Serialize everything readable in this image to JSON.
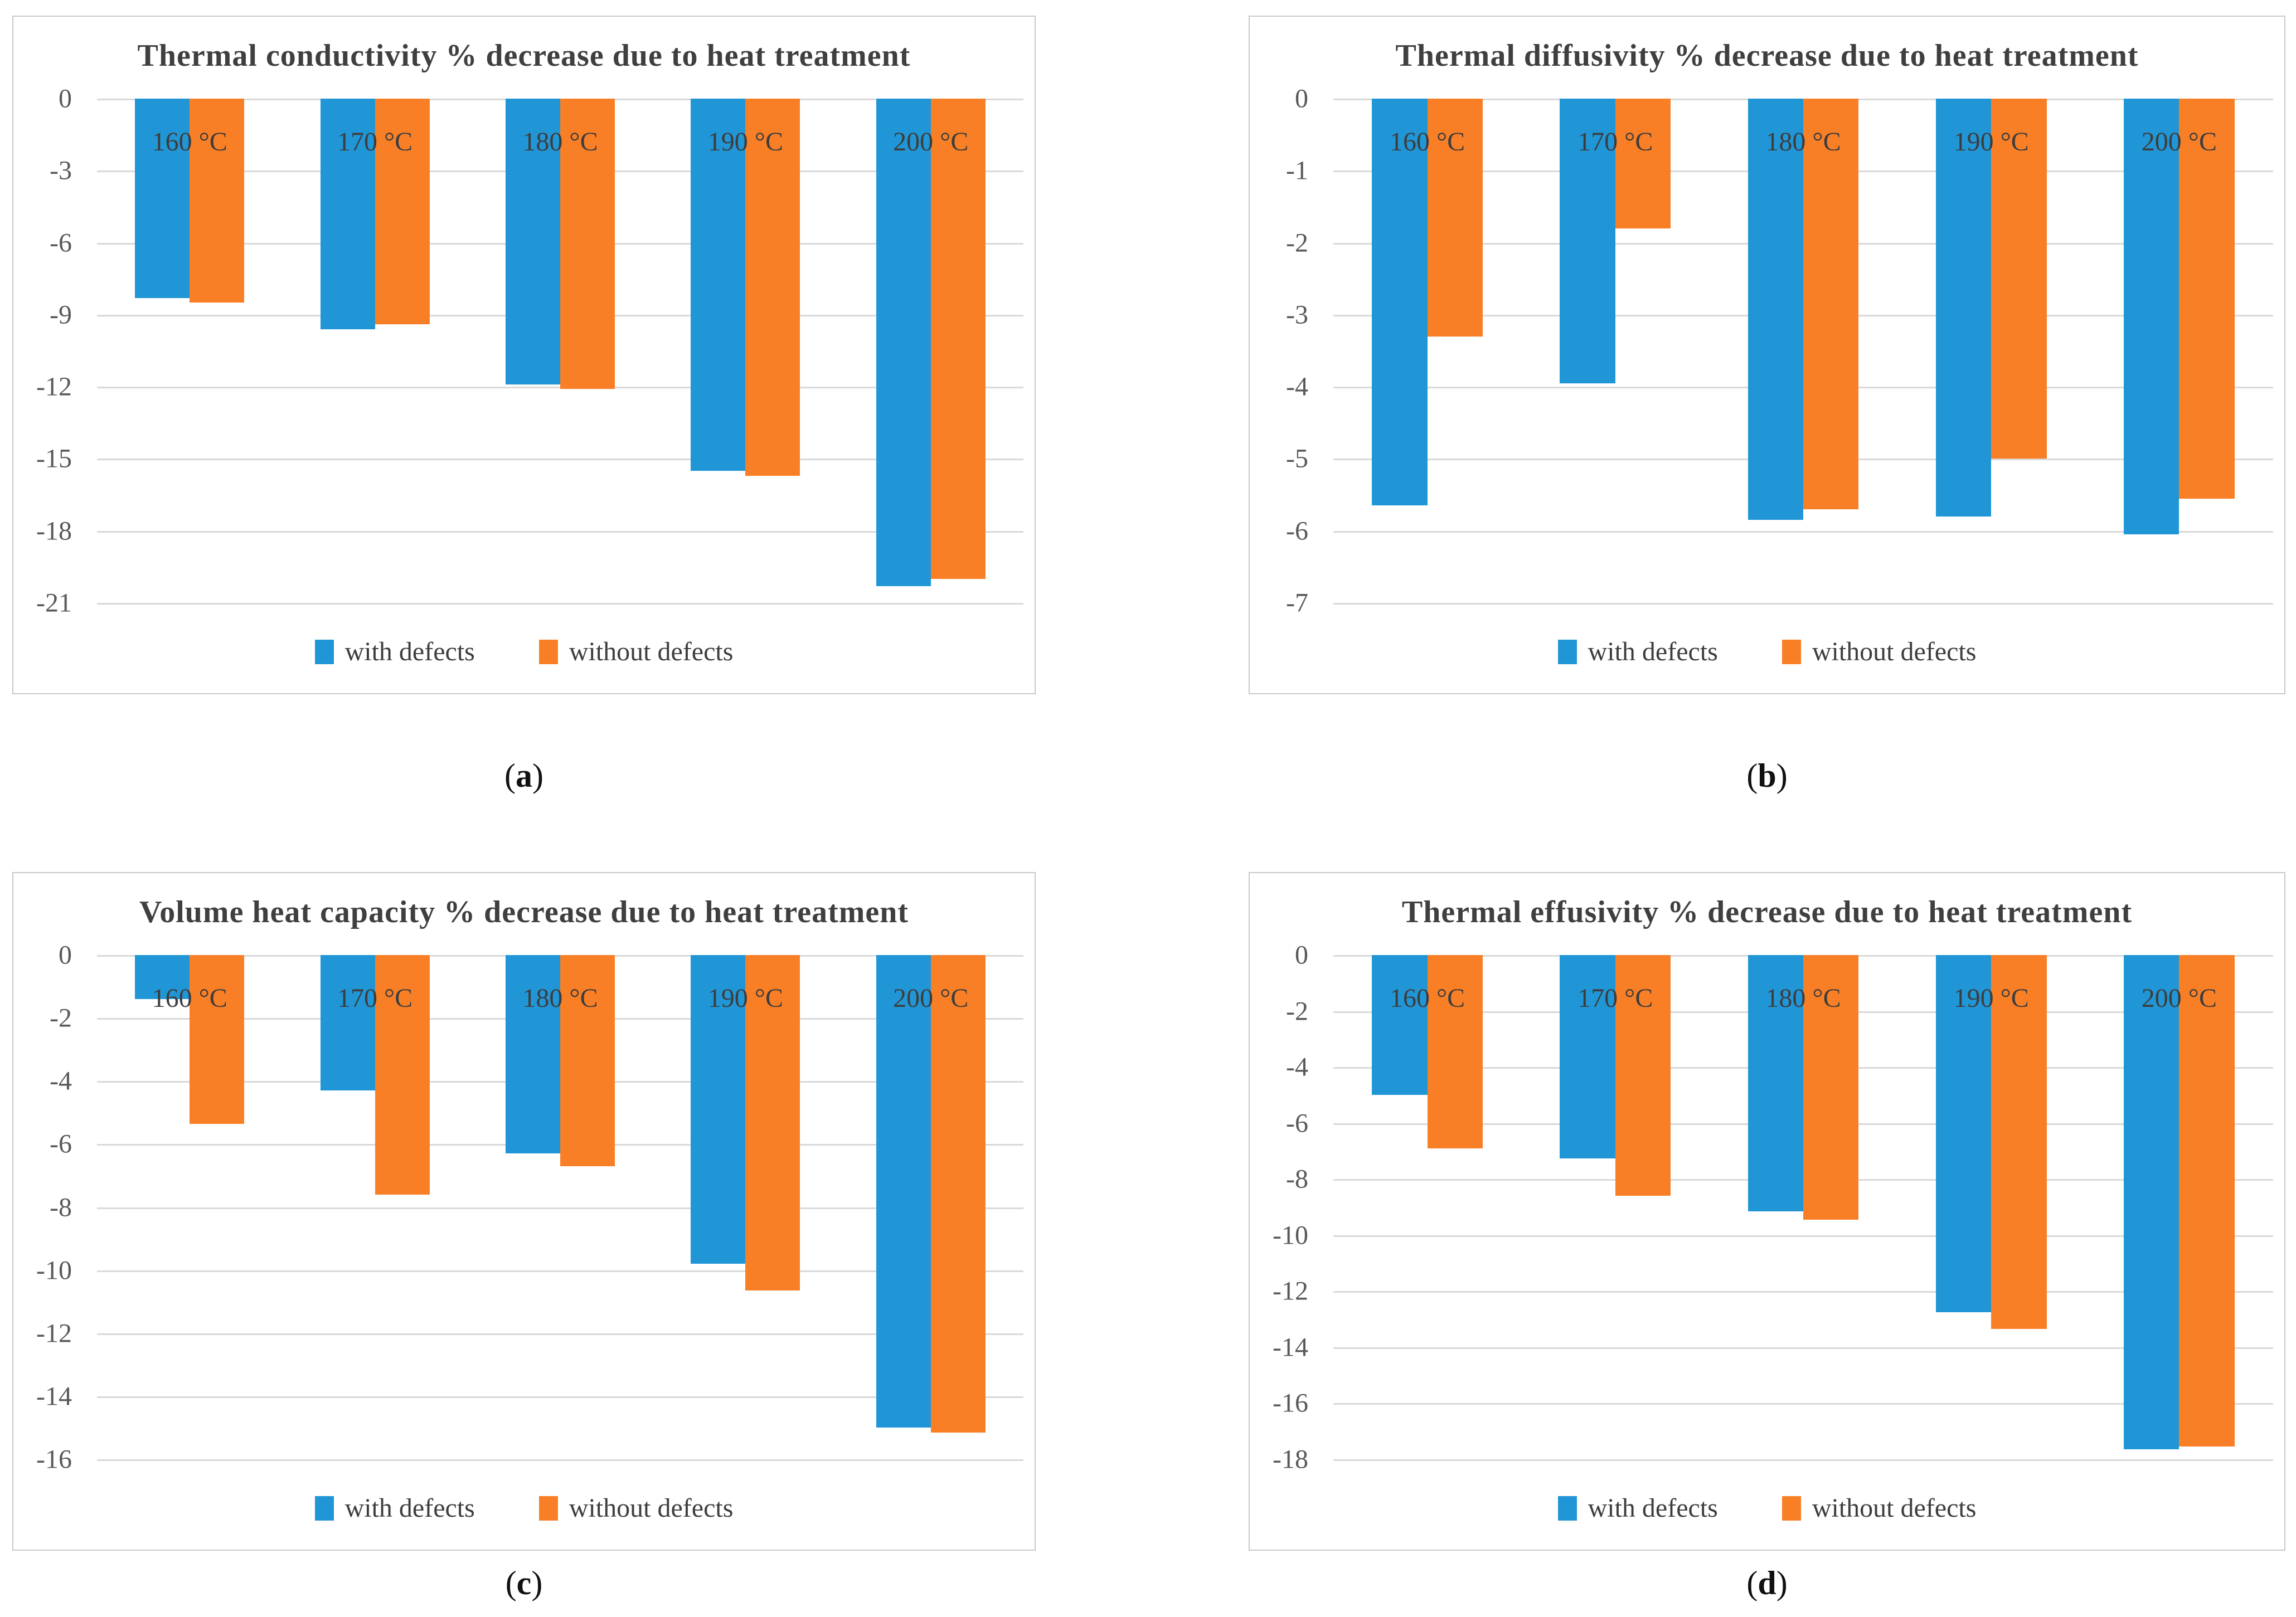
{
  "colors": {
    "with_defects": "#2196D6",
    "without_defects": "#F97F26",
    "gridline": "#D9D9D9",
    "tick_text": "#595959",
    "title_text": "#3F3F3F",
    "category_text": "#3D3D3D",
    "panel_border": "#C9C9C9"
  },
  "legend": {
    "items": [
      {
        "label": "with defects",
        "series": "with_defects"
      },
      {
        "label": "without defects",
        "series": "without_defects"
      }
    ]
  },
  "caption_open": "(",
  "caption_close": ")",
  "chart_data": [
    {
      "type": "bar",
      "title": "Thermal conductivity % decrease due to heat treatment",
      "caption_letter": "a",
      "categories": [
        "160 °C",
        "170 °C",
        "180 °C",
        "190 °C",
        "200 °C"
      ],
      "series": [
        {
          "name": "with defects",
          "values": [
            -8.3,
            -9.6,
            -11.9,
            -15.5,
            -20.3
          ]
        },
        {
          "name": "without defects",
          "values": [
            -8.5,
            -9.4,
            -12.1,
            -15.7,
            -20.0
          ]
        }
      ],
      "ylim": [
        -21,
        0
      ],
      "yticks": [
        0,
        -3,
        -6,
        -9,
        -12,
        -15,
        -18,
        -21
      ],
      "grid": "horizontal",
      "legend_position": "bottom"
    },
    {
      "type": "bar",
      "title": "Thermal diffusivity % decrease due to heat treatment",
      "caption_letter": "b",
      "categories": [
        "160 °C",
        "170 °C",
        "180 °C",
        "190 °C",
        "200 °C"
      ],
      "series": [
        {
          "name": "with defects",
          "values": [
            -5.65,
            -3.95,
            -5.85,
            -5.8,
            -6.05
          ]
        },
        {
          "name": "without defects",
          "values": [
            -3.3,
            -1.8,
            -5.7,
            -5.0,
            -5.55
          ]
        }
      ],
      "ylim": [
        -7,
        0
      ],
      "yticks": [
        0,
        -1,
        -2,
        -3,
        -4,
        -5,
        -6,
        -7
      ],
      "grid": "horizontal",
      "legend_position": "bottom"
    },
    {
      "type": "bar",
      "title": "Volume heat capacity % decrease due to heat treatment",
      "caption_letter": "c",
      "categories": [
        "160 °C",
        "170 °C",
        "180 °C",
        "190 °C",
        "200 °C"
      ],
      "series": [
        {
          "name": "with defects",
          "values": [
            -1.4,
            -4.3,
            -6.3,
            -9.8,
            -15.0
          ]
        },
        {
          "name": "without defects",
          "values": [
            -5.35,
            -7.6,
            -6.7,
            -10.65,
            -15.15
          ]
        }
      ],
      "ylim": [
        -16,
        0
      ],
      "yticks": [
        0,
        -2,
        -4,
        -6,
        -8,
        -10,
        -12,
        -14,
        -16
      ],
      "grid": "horizontal",
      "legend_position": "bottom"
    },
    {
      "type": "bar",
      "title": "Thermal effusivity % decrease due to heat treatment",
      "caption_letter": "d",
      "categories": [
        "160 °C",
        "170 °C",
        "180 °C",
        "190 °C",
        "200 °C"
      ],
      "series": [
        {
          "name": "with defects",
          "values": [
            -5.0,
            -7.25,
            -9.15,
            -12.75,
            -17.65
          ]
        },
        {
          "name": "without defects",
          "values": [
            -6.9,
            -8.6,
            -9.45,
            -13.35,
            -17.55
          ]
        }
      ],
      "ylim": [
        -18,
        0
      ],
      "yticks": [
        0,
        -2,
        -4,
        -6,
        -8,
        -10,
        -12,
        -14,
        -16,
        -18
      ],
      "grid": "horizontal",
      "legend_position": "bottom"
    }
  ]
}
